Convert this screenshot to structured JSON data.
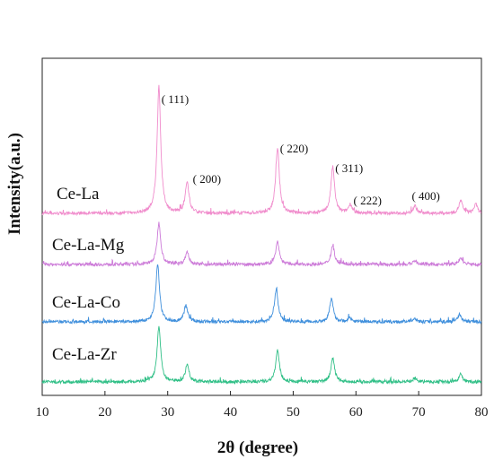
{
  "chart_data": {
    "type": "line",
    "xlabel": "2θ (degree)",
    "ylabel": "Intensity(a.u.)",
    "xlim": [
      10,
      80
    ],
    "xticks": [
      10,
      20,
      30,
      40,
      50,
      60,
      70,
      80
    ],
    "x_tick_labels": [
      "10",
      "20",
      "30",
      "40",
      "50",
      "60",
      "70",
      "80"
    ],
    "y_ticks_shown": false,
    "grid": false,
    "series": [
      {
        "name": "Ce-La",
        "color": "#f08ccc",
        "baseline": 0.0,
        "peaks": [
          {
            "x": 28.6,
            "h": 1.0
          },
          {
            "x": 33.1,
            "h": 0.25
          },
          {
            "x": 47.5,
            "h": 0.52
          },
          {
            "x": 56.3,
            "h": 0.37
          },
          {
            "x": 59.1,
            "h": 0.07
          },
          {
            "x": 69.4,
            "h": 0.06
          },
          {
            "x": 76.7,
            "h": 0.1
          },
          {
            "x": 79.1,
            "h": 0.07
          }
        ]
      },
      {
        "name": "Ce-La-Mg",
        "color": "#cc7ad8",
        "baseline": 0.0,
        "peaks": [
          {
            "x": 28.6,
            "h": 0.33
          },
          {
            "x": 33.1,
            "h": 0.1
          },
          {
            "x": 47.5,
            "h": 0.18
          },
          {
            "x": 56.3,
            "h": 0.15
          },
          {
            "x": 69.4,
            "h": 0.03
          },
          {
            "x": 76.7,
            "h": 0.05
          }
        ]
      },
      {
        "name": "Ce-La-Co",
        "color": "#3f8fdc",
        "baseline": 0.0,
        "peaks": [
          {
            "x": 28.4,
            "h": 0.46
          },
          {
            "x": 32.9,
            "h": 0.13
          },
          {
            "x": 47.3,
            "h": 0.26
          },
          {
            "x": 56.1,
            "h": 0.18
          },
          {
            "x": 59.0,
            "h": 0.03
          },
          {
            "x": 69.3,
            "h": 0.03
          },
          {
            "x": 76.5,
            "h": 0.06
          }
        ]
      },
      {
        "name": "Ce-La-Zr",
        "color": "#2fbf86",
        "baseline": 0.0,
        "peaks": [
          {
            "x": 28.6,
            "h": 0.44
          },
          {
            "x": 33.1,
            "h": 0.14
          },
          {
            "x": 47.5,
            "h": 0.25
          },
          {
            "x": 56.3,
            "h": 0.19
          },
          {
            "x": 69.4,
            "h": 0.03
          },
          {
            "x": 76.7,
            "h": 0.06
          }
        ]
      }
    ],
    "annotations": [
      {
        "text": "( 111)",
        "x": 29.0
      },
      {
        "text": "( 200)",
        "x": 34.0
      },
      {
        "text": "( 220)",
        "x": 47.9
      },
      {
        "text": "( 311)",
        "x": 56.7
      },
      {
        "text": "( 222)",
        "x": 59.6
      },
      {
        "text": "( 400)",
        "x": 68.9
      }
    ]
  }
}
